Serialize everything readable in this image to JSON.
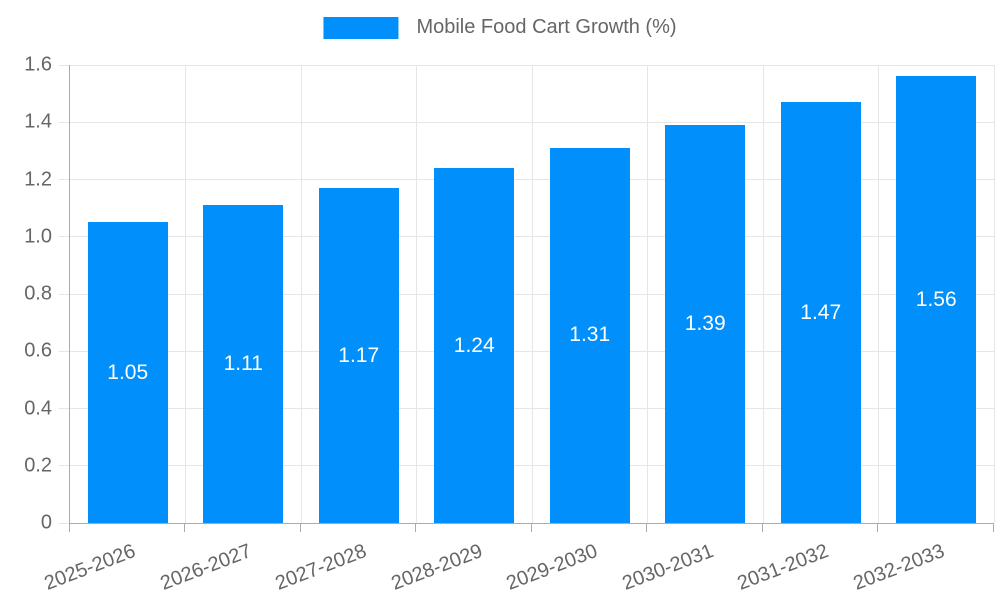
{
  "legend": {
    "label": "Mobile Food Cart Growth (%)"
  },
  "colors": {
    "bar": "#008FFB",
    "bar_label": "#FFFFFF",
    "axis_label": "#666666",
    "legend_text": "#666666",
    "gridline": "#E6E6E6",
    "axis_line": "#ABABAB",
    "background": "#FFFFFF"
  },
  "chart_data": {
    "type": "bar",
    "categories": [
      "2025-2026",
      "2026-2027",
      "2027-2028",
      "2028-2029",
      "2029-2030",
      "2030-2031",
      "2031-2032",
      "2032-2033"
    ],
    "series": [
      {
        "name": "Mobile Food Cart Growth (%)",
        "values": [
          1.05,
          1.11,
          1.17,
          1.24,
          1.31,
          1.39,
          1.47,
          1.56
        ]
      }
    ],
    "bar_value_labels": [
      "1.05",
      "1.11",
      "1.17",
      "1.24",
      "1.31",
      "1.39",
      "1.47",
      "1.56"
    ],
    "title": "",
    "xlabel": "",
    "ylabel": "",
    "ylim": [
      0,
      1.6
    ],
    "ytick_labels": [
      "0",
      "0.2",
      "0.4",
      "0.6",
      "0.8",
      "1.0",
      "1.2",
      "1.4",
      "1.6"
    ],
    "grid": true,
    "legend_position": "top",
    "x_label_rotation_deg": -21
  }
}
